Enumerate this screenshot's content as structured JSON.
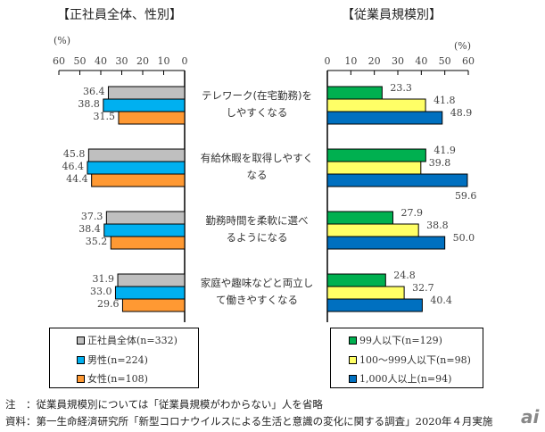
{
  "chart_data": [
    {
      "type": "bar",
      "orientation": "horizontal",
      "direction": "right-to-left",
      "title": "【正社員全体、性別】",
      "unit_label": "(%)",
      "xlim": [
        0,
        60
      ],
      "ticks": [
        "60",
        "50",
        "40",
        "30",
        "20",
        "10",
        "0"
      ],
      "categories": [
        "テレワーク(在宅勤務)をしやすくなる",
        "有給休暇を取得しやすくなる",
        "勤務時間を柔軟に選べるようになる",
        "家庭や趣味などと両立して働きやすくなる"
      ],
      "series": [
        {
          "name": "正社員全体(n=332)",
          "color": "#bfbfbf",
          "values": [
            36.4,
            45.8,
            37.3,
            31.9
          ],
          "labels": [
            "36.4",
            "45.8",
            "37.3",
            "31.9"
          ]
        },
        {
          "name": "男性(n=224)",
          "color": "#00b0f0",
          "values": [
            38.8,
            46.4,
            38.4,
            33.0
          ],
          "labels": [
            "38.8",
            "46.4",
            "38.4",
            "33.0"
          ]
        },
        {
          "name": "女性(n=108)",
          "color": "#ff9933",
          "values": [
            31.5,
            44.4,
            35.2,
            29.6
          ],
          "labels": [
            "31.5",
            "44.4",
            "35.2",
            "29.6"
          ]
        }
      ],
      "legend": "bottom"
    },
    {
      "type": "bar",
      "orientation": "horizontal",
      "direction": "left-to-right",
      "title": "【従業員規模別】",
      "unit_label": "(%)",
      "xlim": [
        0,
        60
      ],
      "ticks": [
        "0",
        "10",
        "20",
        "30",
        "40",
        "50",
        "60"
      ],
      "categories": [
        "テレワーク(在宅勤務)をしやすくなる",
        "有給休暇を取得しやすくなる",
        "勤務時間を柔軟に選べるようになる",
        "家庭や趣味などと両立して働きやすくなる"
      ],
      "series": [
        {
          "name": "99人以下(n=129)",
          "color": "#00b050",
          "values": [
            23.3,
            41.9,
            27.9,
            24.8
          ],
          "labels": [
            "23.3",
            "41.9",
            "27.9",
            "24.8"
          ]
        },
        {
          "name": "100～999人以下(n=98)",
          "color": "#ffff66",
          "values": [
            41.8,
            39.8,
            38.8,
            32.7
          ],
          "labels": [
            "41.8",
            "39.8",
            "38.8",
            "32.7"
          ]
        },
        {
          "name": "1,000人以上(n=94)",
          "color": "#0070c0",
          "values": [
            48.9,
            59.6,
            50.0,
            40.4
          ],
          "labels": [
            "48.9",
            "59.6",
            "50.0",
            "40.4"
          ]
        }
      ],
      "legend": "bottom"
    }
  ],
  "category_labels": [
    {
      "line1": "テレワーク(在宅勤務)を",
      "line2": "しやすくなる"
    },
    {
      "line1": "有給休暇を取得しやすく",
      "line2": "なる"
    },
    {
      "line1": "勤務時間を柔軟に選べ",
      "line2": "るようになる"
    },
    {
      "line1": "家庭や趣味などと両立し",
      "line2": "て働きやすくなる"
    }
  ],
  "notes": {
    "note": "注　：従業員規模別については「従業員規模がわからない」人を省略",
    "source": "資料：第一生命経済研究所「新型コロナウイルスによる生活と意識の変化に関する調査」2020年４月実施"
  },
  "watermark": "ai"
}
